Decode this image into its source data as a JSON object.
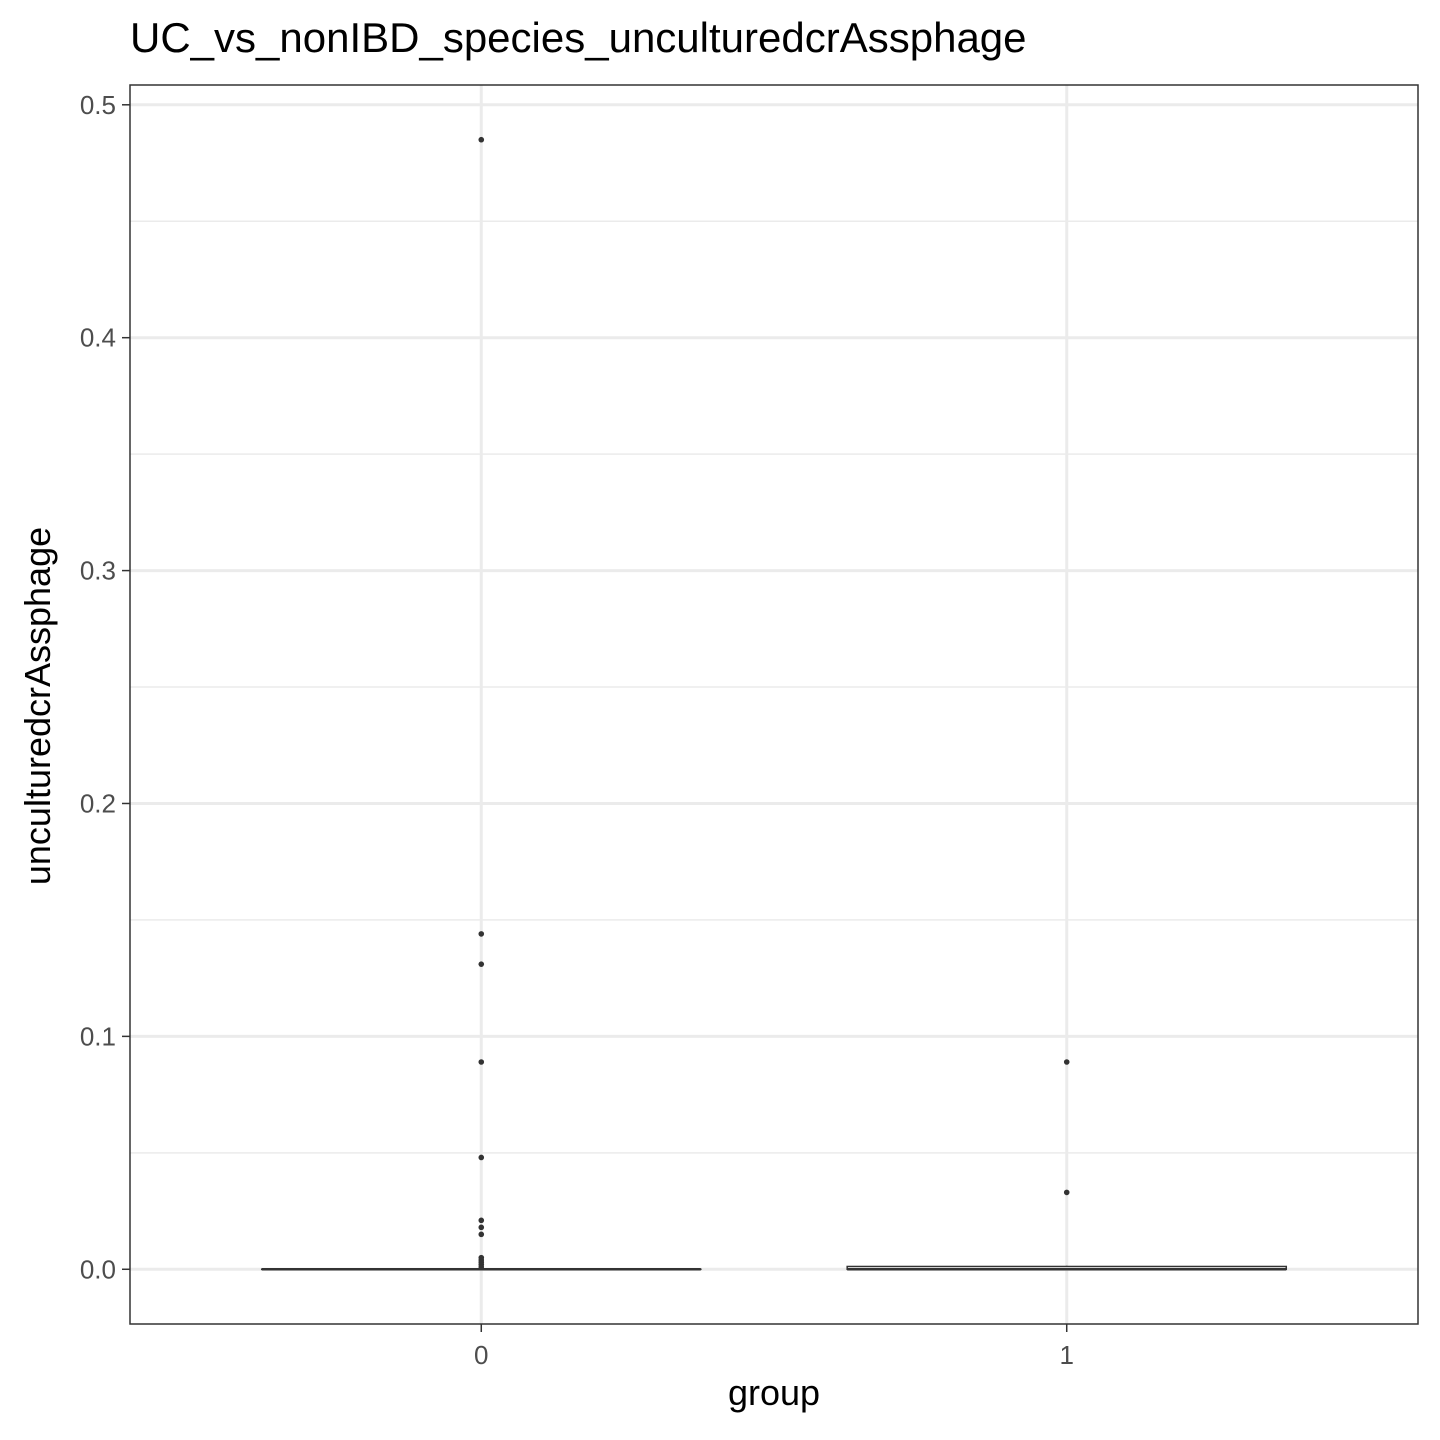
{
  "chart_data": {
    "type": "box",
    "title": "UC_vs_nonIBD_species_unculturedcrAssphage",
    "xlabel": "group",
    "ylabel": "unculturedcrAssphage",
    "categories": [
      "0",
      "1"
    ],
    "ylim": [
      -0.0235,
      0.5085
    ],
    "yticks": [
      0.0,
      0.1,
      0.2,
      0.3,
      0.4,
      0.5
    ],
    "ytick_labels": [
      "0.0",
      "0.1",
      "0.2",
      "0.3",
      "0.4",
      "0.5"
    ],
    "grid": true,
    "boxes": [
      {
        "category": "0",
        "q1": 0.0,
        "median": 0.0,
        "q3": 0.0,
        "whisker_low": 0.0,
        "whisker_high": 0.0
      },
      {
        "category": "1",
        "q1": 0.0,
        "median": 0.0,
        "q3": 0.0012,
        "whisker_low": 0.0,
        "whisker_high": 0.0015
      }
    ],
    "outliers": [
      {
        "category": "0",
        "values": [
          0.485,
          0.144,
          0.131,
          0.089,
          0.048,
          0.021,
          0.018,
          0.015,
          0.005,
          0.004,
          0.003,
          0.002,
          0.001
        ]
      },
      {
        "category": "1",
        "values": [
          0.089,
          0.033
        ]
      }
    ]
  }
}
